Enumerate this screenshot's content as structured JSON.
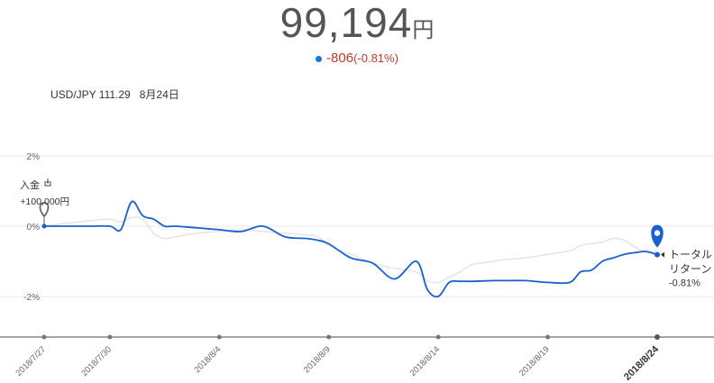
{
  "header": {
    "value": "99,194",
    "unit": "円",
    "change": "-806",
    "change_pct": "(-0.81%)"
  },
  "meta": {
    "rate": "USD/JPY 111.29",
    "date": "8月24日"
  },
  "colors": {
    "main_line": "#1a5fd0",
    "benchmark_line": "#e4e4e4",
    "change_negative": "#c0392b",
    "grid": "#e9e9e9"
  },
  "deposit_marker": {
    "label": "入金",
    "icon": "deposit-icon",
    "amount": "+100,000円"
  },
  "end_marker": {
    "label_line1": "トータル",
    "label_line2": "リターン",
    "value": "-0.81%"
  },
  "chart_data": {
    "type": "line",
    "ylim": [
      -3,
      3
    ],
    "y_ticks": [
      "2%",
      "0%",
      "-2%"
    ],
    "y_tick_values": [
      2,
      0,
      -2
    ],
    "x_ticks": [
      "2018/7/27",
      "2018/7/30",
      "2018/8/4",
      "2018/8/9",
      "2018/8/14",
      "2018/8/19",
      "2018/8/24"
    ],
    "x_tick_values": [
      0,
      3,
      8,
      13,
      18,
      23,
      28
    ],
    "x_tick_bold": "2018/8/24",
    "grid": true,
    "series": [
      {
        "x": [
          0,
          1,
          2,
          3,
          3.5,
          4,
          4.5,
          5,
          5.5,
          6,
          7,
          8,
          9,
          10,
          11,
          12,
          12.5,
          13,
          14,
          15,
          16,
          17,
          17.5,
          18,
          18.5,
          19,
          19.5,
          20,
          20.5,
          21,
          22,
          23,
          24,
          24.5,
          25,
          25.5,
          26,
          26.5,
          27,
          27.5,
          28
        ],
        "y": [
          0,
          0,
          0,
          0,
          -0.1,
          0.7,
          0.3,
          0.2,
          0.0,
          0.0,
          -0.05,
          -0.1,
          -0.15,
          0.0,
          -0.3,
          -0.35,
          -0.4,
          -0.5,
          -0.9,
          -1.05,
          -1.5,
          -1.0,
          -1.8,
          -2.0,
          -1.6,
          -1.57,
          -1.57,
          -1.56,
          -1.55,
          -1.55,
          -1.55,
          -1.6,
          -1.6,
          -1.3,
          -1.25,
          -1.0,
          -0.9,
          -0.8,
          -0.75,
          -0.72,
          -0.81
        ]
      },
      {
        "x": [
          0,
          1,
          2,
          3,
          3.5,
          4,
          4.5,
          5,
          5.5,
          6,
          7,
          8,
          9,
          10,
          11,
          12,
          12.5,
          13,
          14,
          15,
          16,
          17,
          17.5,
          18,
          18.5,
          19,
          19.5,
          20,
          20.5,
          21,
          22,
          23,
          24,
          24.5,
          25,
          25.5,
          26,
          26.5,
          27,
          27.5,
          28
        ],
        "y": [
          0,
          0.08,
          0.15,
          0.2,
          0.12,
          0.25,
          0.2,
          -0.2,
          -0.35,
          -0.3,
          -0.2,
          -0.15,
          -0.1,
          -0.15,
          -0.2,
          -0.25,
          -0.3,
          -0.55,
          -0.8,
          -1.05,
          -1.2,
          -1.3,
          -1.55,
          -1.6,
          -1.45,
          -1.3,
          -1.1,
          -1.05,
          -1.0,
          -0.95,
          -0.9,
          -0.8,
          -0.7,
          -0.55,
          -0.5,
          -0.45,
          -0.35,
          -0.4,
          -0.6,
          -0.75,
          -0.7
        ]
      }
    ]
  }
}
